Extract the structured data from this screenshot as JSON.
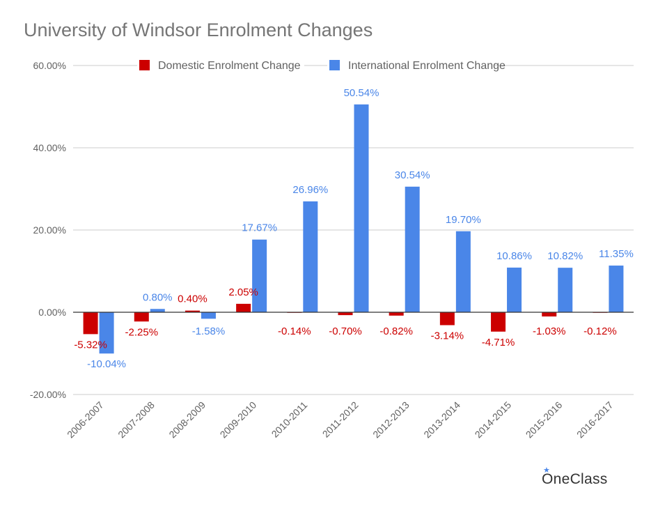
{
  "chart_data": {
    "type": "bar",
    "title": "University of Windsor Enrolment Changes",
    "xlabel": "",
    "ylabel": "",
    "categories": [
      "2006-2007",
      "2007-2008",
      "2008-2009",
      "2009-2010",
      "2010-2011",
      "2011-2012",
      "2012-2013",
      "2013-2014",
      "2014-2015",
      "2015-2016",
      "2016-2017"
    ],
    "series": [
      {
        "name": "Domestic Enrolment Change",
        "color": "#cc0000",
        "values": [
          -5.32,
          -2.25,
          0.4,
          2.05,
          -0.14,
          -0.7,
          -0.82,
          -3.14,
          -4.71,
          -1.03,
          -0.12
        ],
        "labels": [
          "-5.32%",
          "-2.25%",
          "0.40%",
          "2.05%",
          "-0.14%",
          "-0.70%",
          "-0.82%",
          "-3.14%",
          "-4.71%",
          "-1.03%",
          "-0.12%"
        ]
      },
      {
        "name": "International Enrolment Change",
        "color": "#4a86e8",
        "values": [
          -10.04,
          0.8,
          -1.58,
          17.67,
          26.96,
          50.54,
          30.54,
          19.7,
          10.86,
          10.82,
          11.35
        ],
        "labels": [
          "-10.04%",
          "0.80%",
          "-1.58%",
          "17.67%",
          "26.96%",
          "50.54%",
          "30.54%",
          "19.70%",
          "10.86%",
          "10.82%",
          "11.35%"
        ]
      }
    ],
    "ylim": [
      -20,
      60
    ],
    "yticks": [
      60,
      40,
      20,
      0,
      -20
    ],
    "ytick_labels": [
      "60.00%",
      "40.00%",
      "20.00%",
      "0.00%",
      "-20.00%"
    ],
    "grid": true,
    "legend_position": "top"
  },
  "watermark": "OneClass"
}
